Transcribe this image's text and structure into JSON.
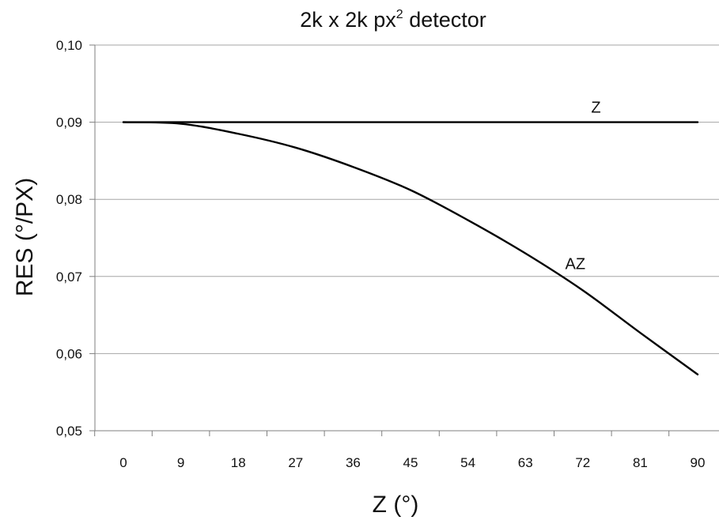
{
  "chart_data": {
    "type": "line",
    "title": {
      "main": "2k x 2k px",
      "sup": "2",
      "rest": " detector"
    },
    "xlabel": "Z (°)",
    "ylabel": "RES (°/PX)",
    "x": [
      0,
      9,
      18,
      27,
      36,
      45,
      54,
      63,
      72,
      81,
      90
    ],
    "x_tick_labels": [
      "0",
      "9",
      "18",
      "27",
      "36",
      "45",
      "54",
      "63",
      "72",
      "81",
      "90"
    ],
    "y_tick_labels": [
      "0,05",
      "0,06",
      "0,07",
      "0,08",
      "0,09",
      "0,10"
    ],
    "ylim": [
      0.05,
      0.1
    ],
    "grid": "horizontal",
    "series": [
      {
        "name": "Z",
        "values": [
          0.09,
          0.09,
          0.09,
          0.09,
          0.09,
          0.09,
          0.09,
          0.09,
          0.09,
          0.09,
          0.09
        ]
      },
      {
        "name": "AZ",
        "values": [
          0.09,
          0.0898,
          0.0885,
          0.0867,
          0.0842,
          0.0812,
          0.0773,
          0.073,
          0.0682,
          0.0627,
          0.0573
        ]
      }
    ]
  }
}
